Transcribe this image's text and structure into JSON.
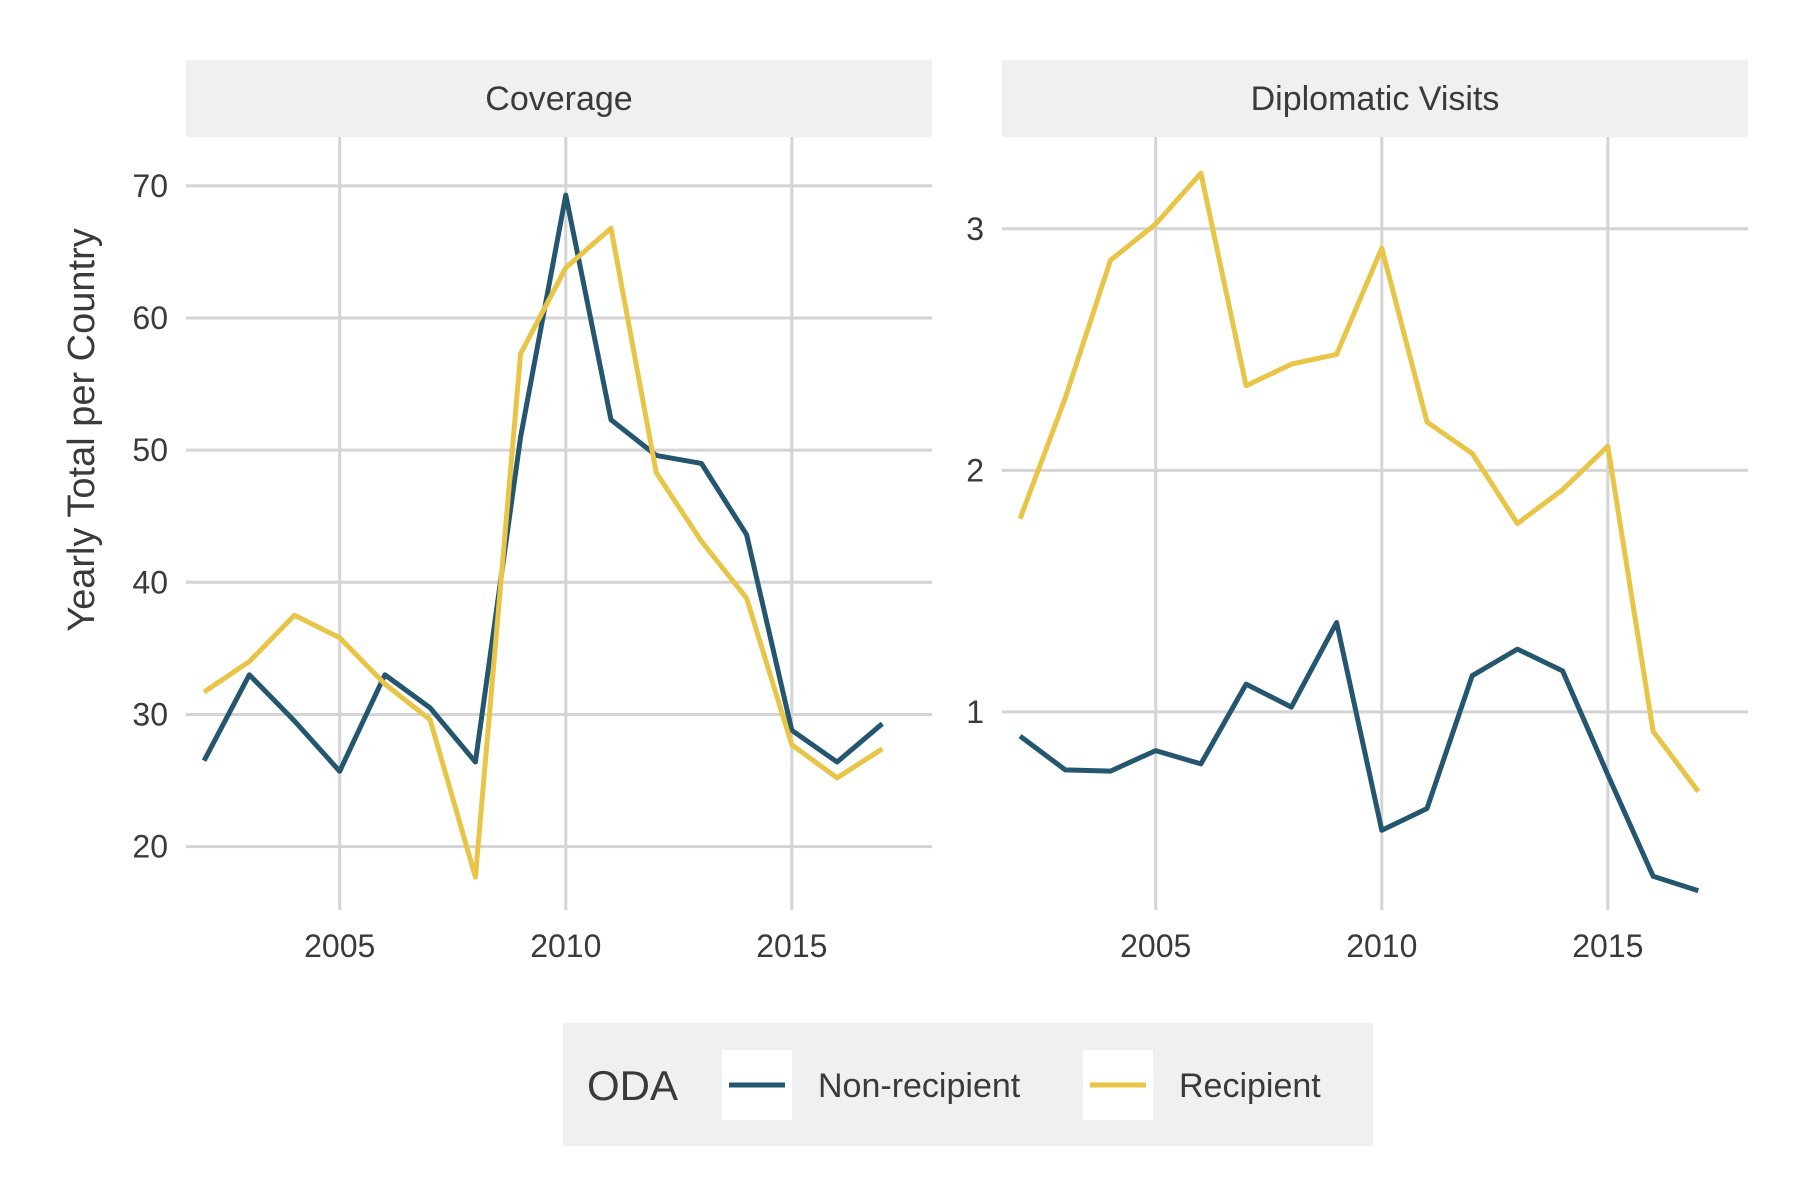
{
  "chart_data": {
    "type": "line",
    "ylabel": "Yearly Total per Country",
    "x": [
      2002,
      2003,
      2004,
      2005,
      2006,
      2007,
      2008,
      2009,
      2010,
      2011,
      2012,
      2013,
      2014,
      2015,
      2016,
      2017
    ],
    "legend": {
      "title": "ODA",
      "position": "bottom",
      "entries": [
        "Non-recipient",
        "Recipient"
      ]
    },
    "colors": {
      "Non-recipient": "#255670",
      "Recipient": "#E8C547"
    },
    "grid": true,
    "panels": [
      {
        "title": "Coverage",
        "xlim": [
          2001.6,
          2018.1
        ],
        "xticks": [
          2005,
          2010,
          2015
        ],
        "ylim": [
          15.2,
          73.7
        ],
        "yticks": [
          20,
          30,
          40,
          50,
          60,
          70
        ],
        "series": [
          {
            "name": "Non-recipient",
            "values": [
              26.5,
              33.0,
              29.5,
              25.7,
              33.0,
              30.5,
              26.4,
              51.0,
              69.3,
              52.3,
              49.6,
              49.0,
              43.6,
              28.8,
              26.4,
              29.3
            ]
          },
          {
            "name": "Recipient",
            "values": [
              31.7,
              34.0,
              37.5,
              35.8,
              32.3,
              29.6,
              17.7,
              57.3,
              63.8,
              66.8,
              48.3,
              43.1,
              38.8,
              27.7,
              25.2,
              27.4
            ]
          }
        ]
      },
      {
        "title": "Diplomatic Visits",
        "xlim": [
          2001.6,
          2018.1
        ],
        "xticks": [
          2005,
          2010,
          2015
        ],
        "ylim": [
          0.18,
          3.38
        ],
        "yticks": [
          1,
          2,
          3
        ],
        "series": [
          {
            "name": "Non-recipient",
            "values": [
              0.9,
              0.76,
              0.755,
              0.84,
              0.785,
              1.115,
              1.02,
              1.37,
              0.51,
              0.6,
              1.15,
              1.26,
              1.17,
              0.74,
              0.32,
              0.26
            ]
          },
          {
            "name": "Recipient",
            "values": [
              1.8,
              2.3,
              2.87,
              3.02,
              3.23,
              2.35,
              2.44,
              2.48,
              2.92,
              2.2,
              2.07,
              1.78,
              1.92,
              2.1,
              0.92,
              0.67
            ]
          }
        ]
      }
    ]
  }
}
